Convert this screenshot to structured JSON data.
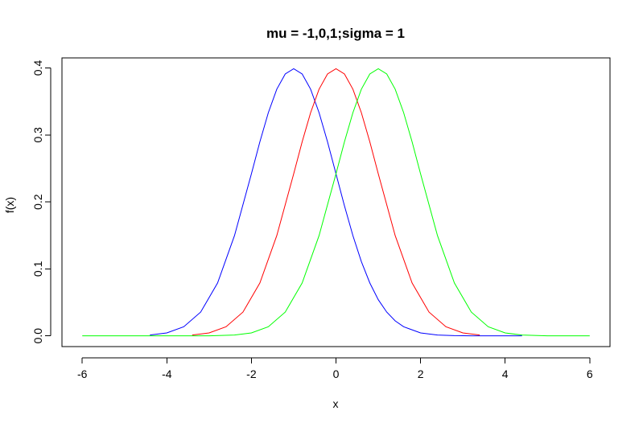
{
  "chart_data": {
    "type": "line",
    "title": "mu = -1,0,1;sigma = 1",
    "xlabel": "x",
    "ylabel": "f(x)",
    "xlim": [
      -6.48,
      6.48
    ],
    "ylim": [
      -0.016,
      0.415
    ],
    "x_ticks": [
      -6,
      -4,
      -2,
      0,
      2,
      4,
      6
    ],
    "y_ticks": [
      0.0,
      0.1,
      0.2,
      0.3,
      0.4
    ],
    "x_tick_labels": [
      "-6",
      "-4",
      "-2",
      "0",
      "2",
      "4",
      "6"
    ],
    "y_tick_labels": [
      "0.0",
      "0.1",
      "0.2",
      "0.3",
      "0.4"
    ],
    "grid": false,
    "legend": "none",
    "series": [
      {
        "color": "#0000ff",
        "x": [
          -4.4,
          -4.0,
          -3.6,
          -3.2,
          -2.8,
          -2.4,
          -2.0,
          -1.8,
          -1.6,
          -1.4,
          -1.2,
          -1.0,
          -0.8,
          -0.6,
          -0.4,
          -0.2,
          0.0,
          0.2,
          0.4,
          0.6,
          0.8,
          1.0,
          1.2,
          1.4,
          1.6,
          2.0,
          2.4,
          2.8,
          3.2,
          3.6,
          4.0,
          4.4
        ],
        "y": [
          0.0012,
          0.0044,
          0.0136,
          0.0355,
          0.079,
          0.1497,
          0.242,
          0.2897,
          0.3332,
          0.3683,
          0.391,
          0.3989,
          0.391,
          0.3683,
          0.3332,
          0.2897,
          0.242,
          0.1942,
          0.1497,
          0.1109,
          0.079,
          0.054,
          0.0355,
          0.0224,
          0.0136,
          0.0044,
          0.0012,
          0.0003,
          0.0001,
          0.0,
          0.0,
          0.0
        ]
      },
      {
        "color": "#ff0000",
        "x": [
          -3.4,
          -3.0,
          -2.6,
          -2.2,
          -1.8,
          -1.4,
          -1.0,
          -0.8,
          -0.6,
          -0.4,
          -0.2,
          0.0,
          0.2,
          0.4,
          0.6,
          0.8,
          1.0,
          1.4,
          1.8,
          2.2,
          2.6,
          3.0,
          3.4
        ],
        "y": [
          0.0012,
          0.0044,
          0.0136,
          0.0355,
          0.079,
          0.1497,
          0.242,
          0.2897,
          0.3332,
          0.3683,
          0.391,
          0.3989,
          0.391,
          0.3683,
          0.3332,
          0.2897,
          0.242,
          0.1497,
          0.079,
          0.0355,
          0.0136,
          0.0044,
          0.0012
        ]
      },
      {
        "color": "#00ff00",
        "x": [
          -6.0,
          -5.0,
          -4.0,
          -3.0,
          -2.4,
          -2.0,
          -1.6,
          -1.2,
          -0.8,
          -0.4,
          0.0,
          0.2,
          0.4,
          0.6,
          0.8,
          1.0,
          1.2,
          1.4,
          1.6,
          1.8,
          2.0,
          2.4,
          2.8,
          3.2,
          3.6,
          4.0,
          4.4,
          5.0,
          6.0
        ],
        "y": [
          0.0,
          0.0,
          0.0,
          0.0001,
          0.0012,
          0.0044,
          0.0136,
          0.0355,
          0.079,
          0.1497,
          0.242,
          0.2897,
          0.3332,
          0.3683,
          0.391,
          0.3989,
          0.391,
          0.3683,
          0.3332,
          0.2897,
          0.242,
          0.1497,
          0.079,
          0.0355,
          0.0136,
          0.0044,
          0.0012,
          0.0,
          0.0
        ]
      }
    ]
  }
}
